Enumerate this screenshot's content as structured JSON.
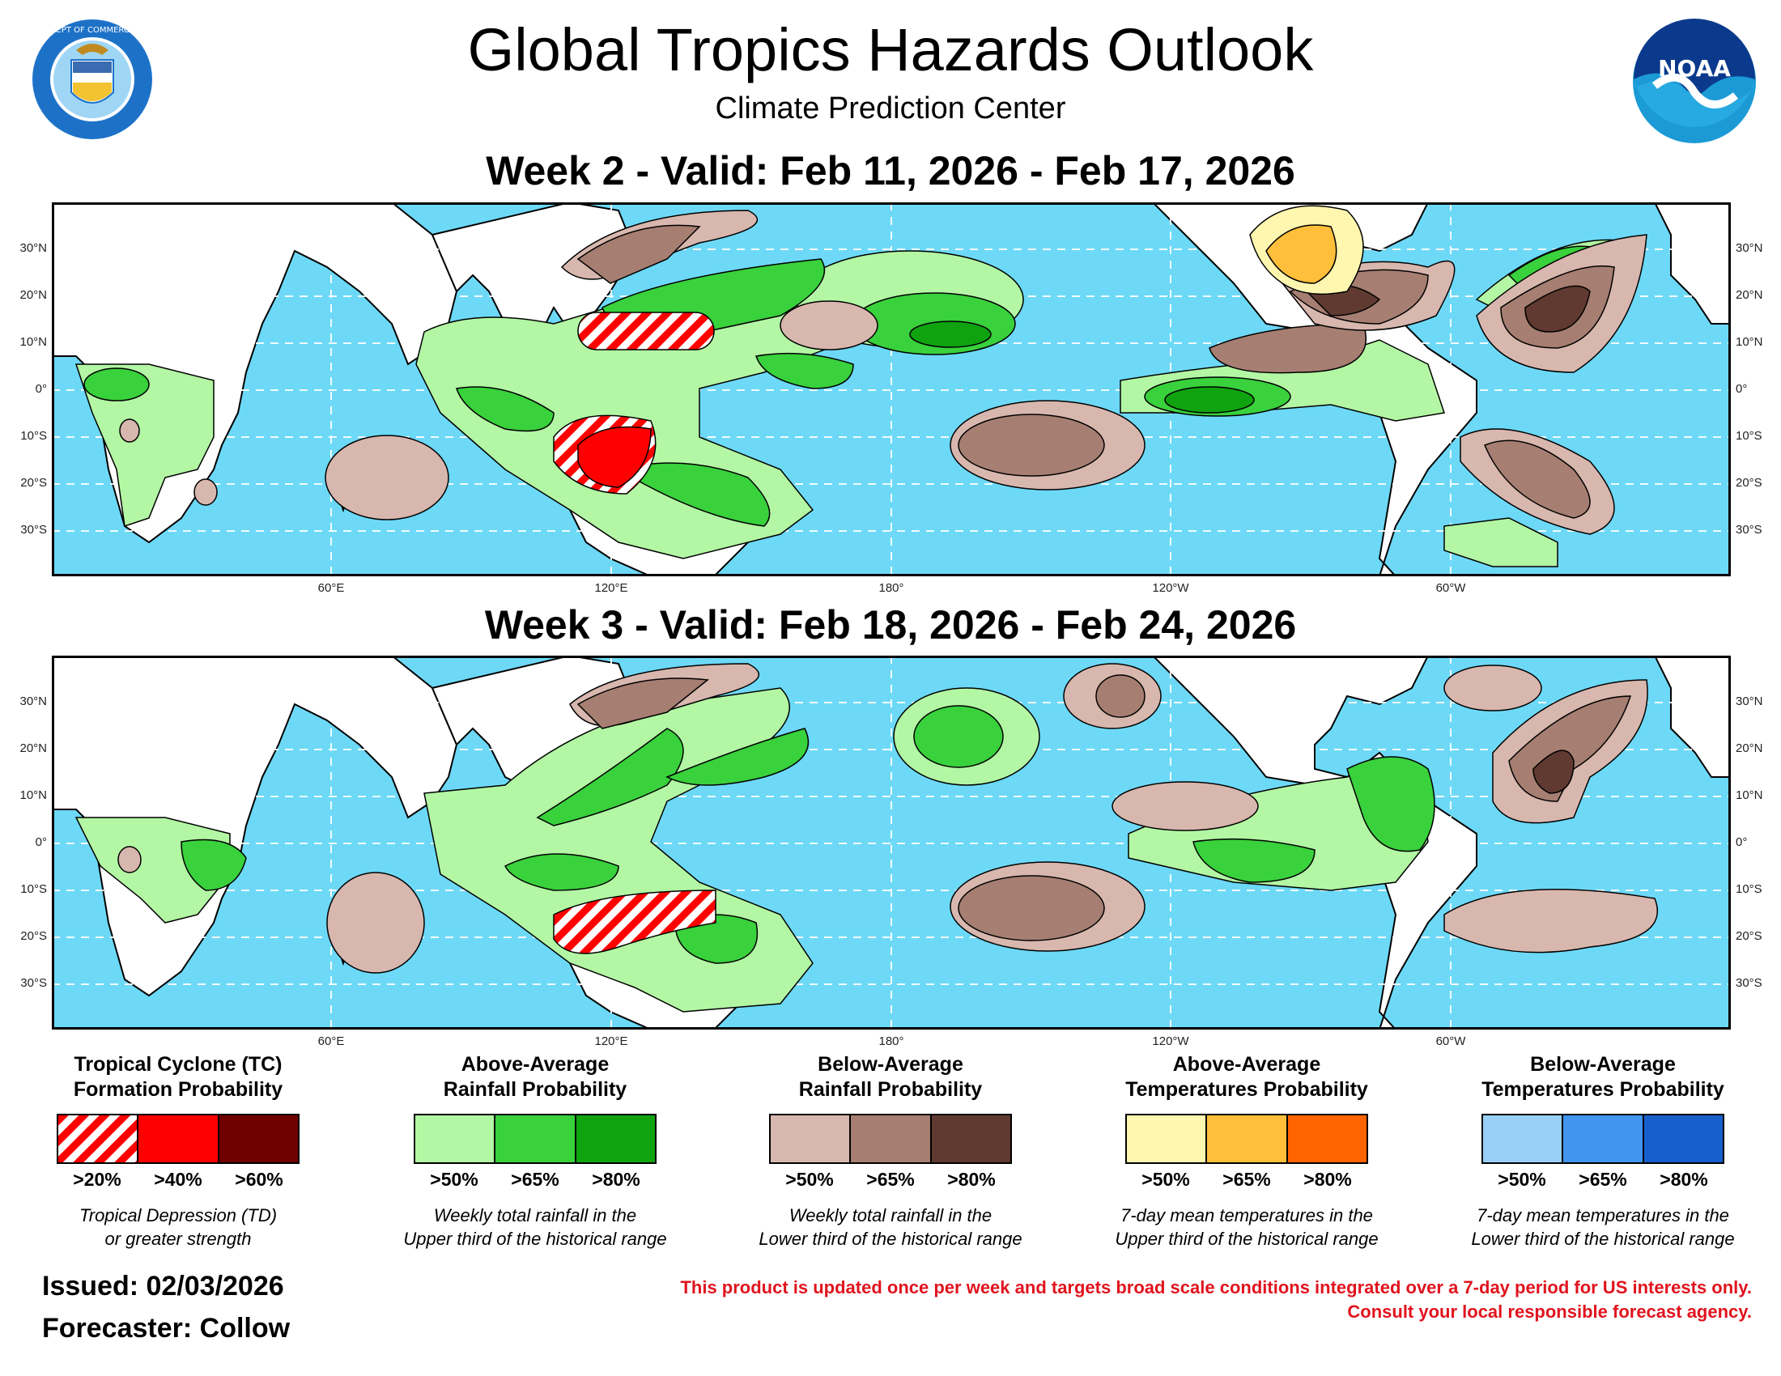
{
  "header": {
    "title": "Global Tropics Hazards Outlook",
    "subtitle": "Climate Prediction Center",
    "left_logo_icon": "department-of-commerce-seal-icon",
    "left_logo_text": "DEPARTMENT OF COMMERCE · UNITED STATES OF AMERICA",
    "right_logo_icon": "noaa-logo-icon",
    "right_logo_text": "NOAA"
  },
  "maps": [
    {
      "title": "Week 2 - Valid: Feb 11, 2026 - Feb 17, 2026"
    },
    {
      "title": "Week 3 - Valid: Feb 18, 2026 - Feb 24, 2026"
    }
  ],
  "axes": {
    "lat_labels": [
      "30°N",
      "20°N",
      "10°N",
      "0°",
      "10°S",
      "20°S",
      "30°S"
    ],
    "lon_labels": [
      "60°E",
      "120°E",
      "180°",
      "120°W",
      "60°W"
    ]
  },
  "colors": {
    "ocean": "#6dd9f7",
    "land": "#ffffff",
    "tc_hatch": "#ff0000",
    "tc_40": "#ff0000",
    "tc_60": "#6e0000",
    "rain_above_50": "#b3f7a4",
    "rain_above_65": "#39d13c",
    "rain_above_80": "#0fa30f",
    "rain_below_50": "#d8b7ae",
    "rain_below_65": "#a67f72",
    "rain_below_80": "#603a30",
    "temp_above_50": "#fff7b0",
    "temp_above_65": "#ffbf3a",
    "temp_above_80": "#ff6400",
    "temp_below_50": "#99d0f7",
    "temp_below_65": "#4195ee",
    "temp_below_80": "#1760cc"
  },
  "legend": [
    {
      "title_line1": "Tropical Cyclone (TC)",
      "title_line2": "Formation Probability",
      "levels": [
        ">20%",
        ">40%",
        ">60%"
      ],
      "desc_line1": "Tropical Depression (TD)",
      "desc_line2": "or greater strength"
    },
    {
      "title_line1": "Above-Average",
      "title_line2": "Rainfall Probability",
      "levels": [
        ">50%",
        ">65%",
        ">80%"
      ],
      "desc_line1": "Weekly total rainfall in the",
      "desc_line2": "Upper third of the historical range"
    },
    {
      "title_line1": "Below-Average",
      "title_line2": "Rainfall Probability",
      "levels": [
        ">50%",
        ">65%",
        ">80%"
      ],
      "desc_line1": "Weekly total rainfall in the",
      "desc_line2": "Lower third of the historical range"
    },
    {
      "title_line1": "Above-Average",
      "title_line2": "Temperatures Probability",
      "levels": [
        ">50%",
        ">65%",
        ">80%"
      ],
      "desc_line1": "7-day mean temperatures in the",
      "desc_line2": "Upper third of the historical range"
    },
    {
      "title_line1": "Below-Average",
      "title_line2": "Temperatures Probability",
      "levels": [
        ">50%",
        ">65%",
        ">80%"
      ],
      "desc_line1": "7-day mean temperatures in the",
      "desc_line2": "Lower third of the historical range"
    }
  ],
  "footer": {
    "issued": "Issued: 02/03/2026",
    "forecaster": "Forecaster: Collow",
    "disclaimer_line1": "This product is updated once per week and targets broad scale conditions integrated over a 7-day period for US interests only.",
    "disclaimer_line2": "Consult your local responsible forecast agency."
  }
}
